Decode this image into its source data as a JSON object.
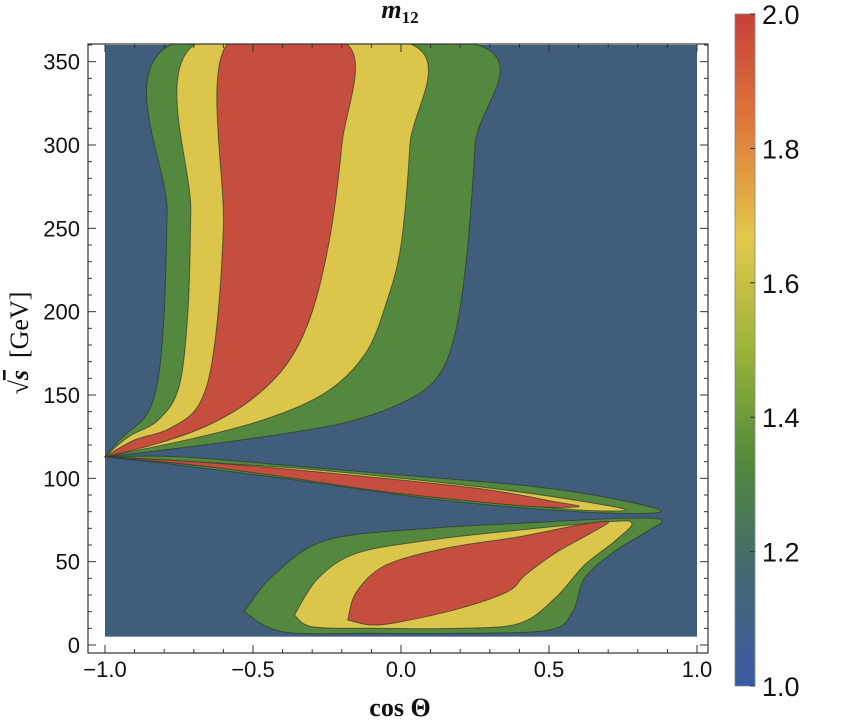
{
  "chart_data": {
    "type": "contour",
    "title_base": "m",
    "title_sub": "12",
    "xlabel": "cos Θ",
    "ylabel_root": "s",
    "ylabel_unit": "[GeV]",
    "xlim": [
      -1.0,
      1.0
    ],
    "ylim": [
      0,
      360
    ],
    "x_ticks": [
      -1.0,
      -0.5,
      0.0,
      0.5,
      1.0
    ],
    "x_tick_labels": [
      "−1.0",
      "−0.5",
      "0.0",
      "0.5",
      "1.0"
    ],
    "y_ticks": [
      0,
      50,
      100,
      150,
      200,
      250,
      300,
      350
    ],
    "y_tick_labels": [
      "0",
      "50",
      "100",
      "150",
      "200",
      "250",
      "300",
      "350"
    ],
    "colorbar": {
      "range": [
        1.0,
        2.0
      ],
      "ticks": [
        1.0,
        1.2,
        1.4,
        1.6,
        1.8,
        2.0
      ],
      "tick_labels": [
        "1.0",
        "1.2",
        "1.4",
        "1.6",
        "1.8",
        "2.0"
      ],
      "stops": [
        "#3b5aa6",
        "#3f6a72",
        "#4f8a3a",
        "#9cb33a",
        "#e3c84a",
        "#e07a3a",
        "#c5403a"
      ]
    },
    "background_color": "#415d7c",
    "grid": false,
    "levels": [
      {
        "level": 1.4,
        "color": "#55883f"
      },
      {
        "level": 1.6,
        "color": "#dcc54b"
      },
      {
        "level": 1.8,
        "color": "#c64e3e"
      }
    ],
    "regions": [
      {
        "name": "upper-lobe",
        "bands": [
          {
            "level": 1.4,
            "points": [
              [
                -1.0,
                113
              ],
              [
                -0.94,
                125
              ],
              [
                -0.86,
                138
              ],
              [
                -0.82,
                160
              ],
              [
                -0.8,
                200
              ],
              [
                -0.79,
                260
              ],
              [
                -0.78,
                360
              ],
              [
                0.26,
                360
              ],
              [
                0.25,
                300
              ],
              [
                0.22,
                230
              ],
              [
                0.18,
                185
              ],
              [
                0.12,
                160
              ],
              [
                0.0,
                145
              ],
              [
                -0.2,
                133
              ],
              [
                -0.5,
                124
              ],
              [
                -0.8,
                117
              ],
              [
                -1.0,
                113
              ]
            ]
          },
          {
            "level": 1.6,
            "points": [
              [
                -1.0,
                113
              ],
              [
                -0.92,
                125
              ],
              [
                -0.82,
                135
              ],
              [
                -0.75,
                155
              ],
              [
                -0.72,
                200
              ],
              [
                -0.71,
                260
              ],
              [
                -0.7,
                360
              ],
              [
                0.04,
                360
              ],
              [
                0.03,
                300
              ],
              [
                0.0,
                240
              ],
              [
                -0.05,
                205
              ],
              [
                -0.12,
                175
              ],
              [
                -0.25,
                152
              ],
              [
                -0.45,
                136
              ],
              [
                -0.7,
                124
              ],
              [
                -1.0,
                113
              ]
            ]
          },
          {
            "level": 1.8,
            "points": [
              [
                -1.0,
                113
              ],
              [
                -0.9,
                123
              ],
              [
                -0.78,
                130
              ],
              [
                -0.68,
                145
              ],
              [
                -0.63,
                180
              ],
              [
                -0.6,
                250
              ],
              [
                -0.59,
                360
              ],
              [
                -0.18,
                360
              ],
              [
                -0.2,
                300
              ],
              [
                -0.24,
                245
              ],
              [
                -0.3,
                200
              ],
              [
                -0.38,
                170
              ],
              [
                -0.5,
                148
              ],
              [
                -0.65,
                132
              ],
              [
                -0.82,
                121
              ],
              [
                -1.0,
                113
              ]
            ]
          }
        ]
      },
      {
        "name": "middle-lobe",
        "bands": [
          {
            "level": 1.4,
            "points": [
              [
                -1.0,
                113
              ],
              [
                -0.75,
                113
              ],
              [
                -0.4,
                108
              ],
              [
                0.0,
                102
              ],
              [
                0.4,
                96
              ],
              [
                0.65,
                90
              ],
              [
                0.86,
                82
              ],
              [
                0.84,
                79
              ],
              [
                0.6,
                80
              ],
              [
                0.3,
                84
              ],
              [
                0.0,
                90
              ],
              [
                -0.4,
                100
              ],
              [
                -0.75,
                108
              ],
              [
                -1.0,
                113
              ]
            ]
          },
          {
            "level": 1.6,
            "points": [
              [
                -1.0,
                113
              ],
              [
                -0.7,
                110
              ],
              [
                -0.35,
                106
              ],
              [
                0.0,
                100
              ],
              [
                0.35,
                93
              ],
              [
                0.62,
                86
              ],
              [
                0.76,
                81
              ],
              [
                0.6,
                81
              ],
              [
                0.3,
                86
              ],
              [
                0.0,
                92
              ],
              [
                -0.35,
                101
              ],
              [
                -0.7,
                108
              ],
              [
                -1.0,
                113
              ]
            ]
          },
          {
            "level": 1.8,
            "points": [
              [
                -1.0,
                113
              ],
              [
                -0.7,
                110
              ],
              [
                -0.35,
                105
              ],
              [
                0.0,
                99
              ],
              [
                0.3,
                93
              ],
              [
                0.52,
                86
              ],
              [
                0.6,
                83
              ],
              [
                0.45,
                83
              ],
              [
                0.2,
                87
              ],
              [
                -0.1,
                93
              ],
              [
                -0.4,
                101
              ],
              [
                -0.7,
                108
              ],
              [
                -1.0,
                113
              ]
            ]
          }
        ]
      },
      {
        "name": "lower-lobe",
        "bands": [
          {
            "level": 1.4,
            "points": [
              [
                -0.53,
                20
              ],
              [
                -0.43,
                42
              ],
              [
                -0.25,
                63
              ],
              [
                0.1,
                70
              ],
              [
                0.4,
                73
              ],
              [
                0.75,
                76
              ],
              [
                0.88,
                75
              ],
              [
                0.83,
                68
              ],
              [
                0.72,
                56
              ],
              [
                0.62,
                40
              ],
              [
                0.58,
                20
              ],
              [
                0.5,
                9
              ],
              [
                0.2,
                7
              ],
              [
                -0.1,
                7
              ],
              [
                -0.4,
                8
              ],
              [
                -0.53,
                20
              ]
            ]
          },
          {
            "level": 1.6,
            "points": [
              [
                -0.36,
                18
              ],
              [
                -0.28,
                40
              ],
              [
                -0.15,
                55
              ],
              [
                0.1,
                63
              ],
              [
                0.4,
                69
              ],
              [
                0.7,
                74
              ],
              [
                0.78,
                73
              ],
              [
                0.72,
                62
              ],
              [
                0.62,
                48
              ],
              [
                0.52,
                28
              ],
              [
                0.4,
                13
              ],
              [
                0.2,
                10
              ],
              [
                -0.1,
                10
              ],
              [
                -0.3,
                11
              ],
              [
                -0.36,
                18
              ]
            ]
          },
          {
            "level": 1.8,
            "points": [
              [
                -0.18,
                15
              ],
              [
                -0.15,
                32
              ],
              [
                -0.05,
                48
              ],
              [
                0.15,
                58
              ],
              [
                0.4,
                65
              ],
              [
                0.6,
                72
              ],
              [
                0.7,
                74
              ],
              [
                0.64,
                67
              ],
              [
                0.52,
                55
              ],
              [
                0.42,
                42
              ],
              [
                0.36,
                32
              ],
              [
                0.2,
                22
              ],
              [
                0.0,
                14
              ],
              [
                -0.1,
                12
              ],
              [
                -0.18,
                15
              ]
            ]
          }
        ]
      }
    ]
  }
}
